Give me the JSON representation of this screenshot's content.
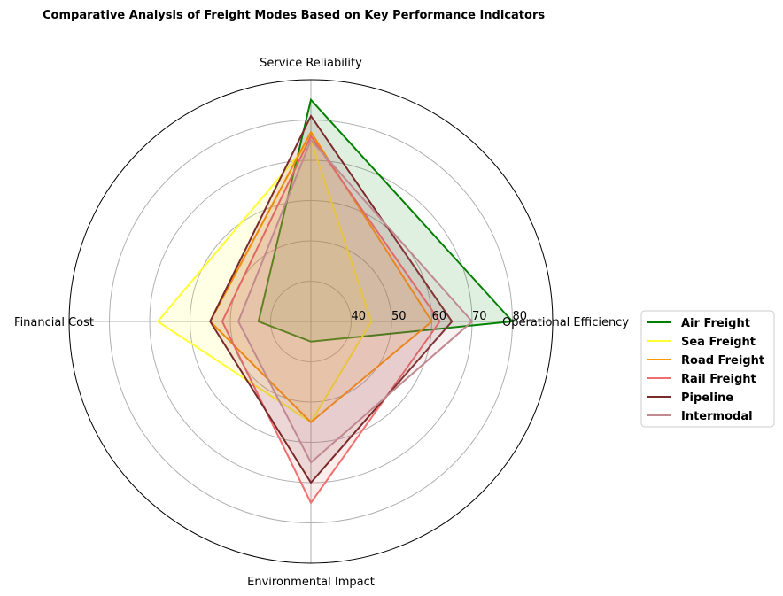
{
  "chart_data": {
    "type": "radar",
    "title": "Comparative Analysis of Freight Modes Based on Key Performance Indicators",
    "axes": [
      "Operational Efficiency",
      "Service Reliability",
      "Financial Cost",
      "Environmental Impact"
    ],
    "radial_ticks": [
      40,
      50,
      60,
      70,
      80
    ],
    "radial_range": [
      30,
      90
    ],
    "grid": true,
    "legend_position": "right",
    "series": [
      {
        "name": "Air Freight",
        "color": "#008000",
        "values": [
          80,
          85,
          43,
          35
        ]
      },
      {
        "name": "Sea Freight",
        "color": "#ffff33",
        "values": [
          45,
          75,
          68,
          55
        ]
      },
      {
        "name": "Road Freight",
        "color": "#ff9900",
        "values": [
          60,
          77,
          55,
          55
        ]
      },
      {
        "name": "Rail Freight",
        "color": "#f07070",
        "values": [
          62,
          76,
          52,
          75
        ]
      },
      {
        "name": "Pipeline",
        "color": "#7a2a2a",
        "values": [
          65,
          81,
          55,
          70
        ]
      },
      {
        "name": "Intermodal",
        "color": "#c08a90",
        "values": [
          70,
          75,
          48,
          65
        ]
      }
    ]
  }
}
